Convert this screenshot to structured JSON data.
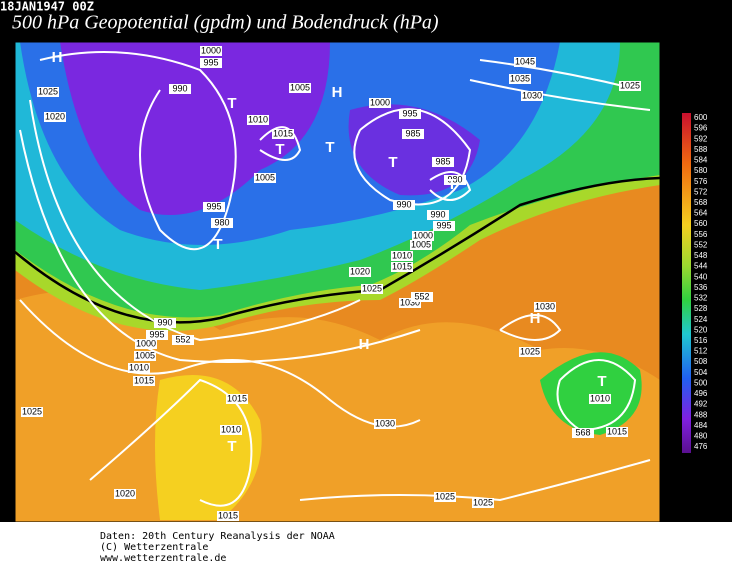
{
  "header": {
    "date": "18JAN1947 00Z",
    "title": "500 hPa Geopotential (gpdm) und Bodendruck (hPa)"
  },
  "legend": {
    "ticks": [
      600,
      596,
      592,
      588,
      584,
      580,
      576,
      572,
      568,
      564,
      560,
      556,
      552,
      548,
      544,
      540,
      536,
      532,
      528,
      524,
      520,
      516,
      512,
      508,
      504,
      500,
      496,
      492,
      488,
      484,
      480,
      476
    ]
  },
  "map": {
    "pressure_labels": [
      1000,
      995,
      990,
      1005,
      1000,
      995,
      1045,
      1035,
      1030,
      1025,
      1025,
      1020,
      1010,
      1015,
      985,
      1005,
      985,
      980,
      995,
      980,
      990,
      990,
      995,
      1000,
      1005,
      1010,
      1015,
      1020,
      1025,
      1030,
      552,
      1030,
      990,
      995,
      1000,
      1005,
      1010,
      1015,
      552,
      1025,
      1010,
      1015,
      568,
      1025,
      1015,
      1010,
      1030,
      1020,
      1025,
      1025,
      1015
    ],
    "centers": [
      "H",
      "T",
      "H",
      "T",
      "T",
      "T",
      "T",
      "T",
      "H",
      "H",
      "T",
      "T"
    ]
  },
  "footer": {
    "lines": [
      "Daten: 20th Century Reanalysis der NOAA",
      "(C) Wetterzentrale",
      "www.wetterzentrale.de"
    ]
  }
}
